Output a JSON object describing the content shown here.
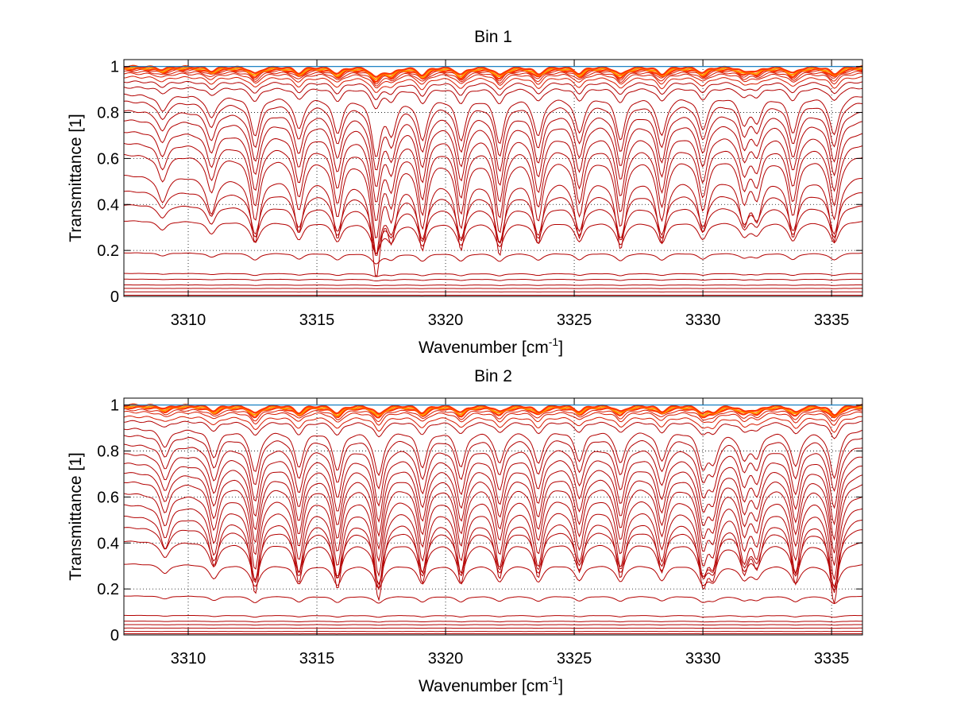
{
  "figure": {
    "background": "#ffffff",
    "grid_color": "#000000",
    "line_color_dark": "#b30000",
    "line_color_mid": "#ff3300",
    "line_color_light": "#ff9900",
    "line_color_blue": "#0073bd"
  },
  "chart_data": [
    {
      "type": "line",
      "title": "Bin 1",
      "xlabel": "Wavenumber [cm",
      "xlabel_sup": "-1",
      "xlabel_tail": "]",
      "ylabel": "Transmittance [1]",
      "xlim": [
        3307.5,
        3336.2
      ],
      "ylim": [
        0,
        1.03
      ],
      "xticks": [
        3310,
        3315,
        3320,
        3325,
        3330,
        3335
      ],
      "xtick_labels": [
        "3310",
        "3315",
        "3320",
        "3325",
        "3330",
        "3335"
      ],
      "yticks": [
        0,
        0.2,
        0.4,
        0.6,
        0.8,
        1
      ],
      "ytick_labels": [
        "0",
        "0.2",
        "0.4",
        "0.6",
        "0.8",
        "1"
      ],
      "grid": true,
      "series_count_approx": 30,
      "baselines": [
        0.005,
        0.02,
        0.035,
        0.05,
        0.075,
        0.1,
        0.19,
        0.33,
        0.4,
        0.46,
        0.53,
        0.62,
        0.67,
        0.72,
        0.77,
        0.81,
        0.85,
        0.88,
        0.91,
        0.935,
        0.955,
        0.97,
        0.978,
        0.985,
        0.99,
        0.995,
        1.0
      ],
      "absorption_lines": [
        {
          "x": 3309.0,
          "depth": 0.25
        },
        {
          "x": 3310.9,
          "depth": 0.35
        },
        {
          "x": 3312.6,
          "depth": 0.6
        },
        {
          "x": 3314.3,
          "depth": 0.5
        },
        {
          "x": 3315.8,
          "depth": 0.55
        },
        {
          "x": 3317.3,
          "depth": 0.85
        },
        {
          "x": 3317.9,
          "depth": 0.5
        },
        {
          "x": 3319.1,
          "depth": 0.65
        },
        {
          "x": 3320.6,
          "depth": 0.65
        },
        {
          "x": 3322.1,
          "depth": 0.7
        },
        {
          "x": 3323.6,
          "depth": 0.6
        },
        {
          "x": 3325.2,
          "depth": 0.55
        },
        {
          "x": 3326.8,
          "depth": 0.65
        },
        {
          "x": 3328.4,
          "depth": 0.6
        },
        {
          "x": 3330.0,
          "depth": 0.5
        },
        {
          "x": 3331.6,
          "depth": 0.4
        },
        {
          "x": 3332.1,
          "depth": 0.35
        },
        {
          "x": 3333.5,
          "depth": 0.55
        },
        {
          "x": 3335.1,
          "depth": 0.6
        }
      ]
    },
    {
      "type": "line",
      "title": "Bin 2",
      "xlabel": "Wavenumber [cm",
      "xlabel_sup": "-1",
      "xlabel_tail": "]",
      "ylabel": "Transmittance [1]",
      "xlim": [
        3307.5,
        3336.2
      ],
      "ylim": [
        0,
        1.03
      ],
      "xticks": [
        3310,
        3315,
        3320,
        3325,
        3330,
        3335
      ],
      "xtick_labels": [
        "3310",
        "3315",
        "3320",
        "3325",
        "3330",
        "3335"
      ],
      "yticks": [
        0,
        0.2,
        0.4,
        0.6,
        0.8,
        1
      ],
      "ytick_labels": [
        "0",
        "0.2",
        "0.4",
        "0.6",
        "0.8",
        "1"
      ],
      "grid": true,
      "series_count_approx": 30,
      "baselines": [
        0.005,
        0.015,
        0.03,
        0.045,
        0.06,
        0.085,
        0.17,
        0.31,
        0.41,
        0.47,
        0.52,
        0.57,
        0.62,
        0.67,
        0.71,
        0.75,
        0.79,
        0.83,
        0.87,
        0.9,
        0.93,
        0.95,
        0.97,
        0.98,
        0.99,
        0.995,
        1.0
      ],
      "absorption_lines": [
        {
          "x": 3309.1,
          "depth": 0.3
        },
        {
          "x": 3311.0,
          "depth": 0.45
        },
        {
          "x": 3312.6,
          "depth": 0.7
        },
        {
          "x": 3314.3,
          "depth": 0.6
        },
        {
          "x": 3315.8,
          "depth": 0.65
        },
        {
          "x": 3317.4,
          "depth": 0.75
        },
        {
          "x": 3319.1,
          "depth": 0.6
        },
        {
          "x": 3320.6,
          "depth": 0.6
        },
        {
          "x": 3322.1,
          "depth": 0.55
        },
        {
          "x": 3323.6,
          "depth": 0.55
        },
        {
          "x": 3325.2,
          "depth": 0.5
        },
        {
          "x": 3326.8,
          "depth": 0.55
        },
        {
          "x": 3328.4,
          "depth": 0.5
        },
        {
          "x": 3330.0,
          "depth": 0.55
        },
        {
          "x": 3330.4,
          "depth": 0.45
        },
        {
          "x": 3331.6,
          "depth": 0.45
        },
        {
          "x": 3332.1,
          "depth": 0.4
        },
        {
          "x": 3333.6,
          "depth": 0.6
        },
        {
          "x": 3335.1,
          "depth": 0.8
        }
      ]
    }
  ]
}
